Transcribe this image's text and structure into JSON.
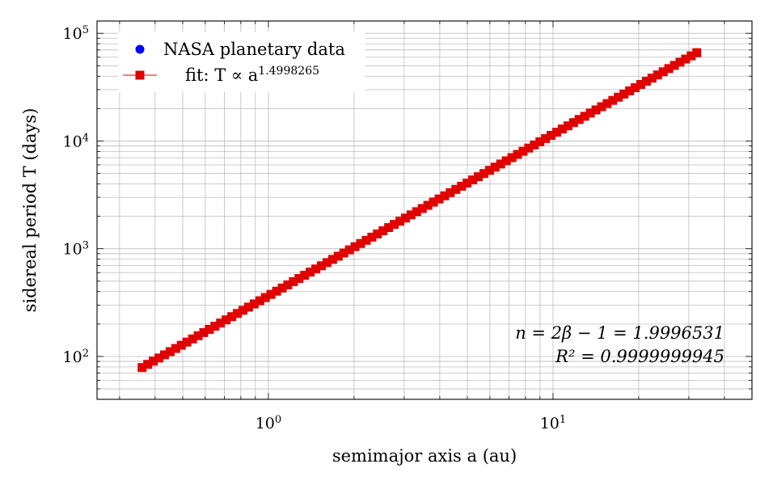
{
  "chart_data": {
    "type": "scatter",
    "title": "",
    "xlabel": "semimajor axis a (au)",
    "ylabel": "sidereal period T (days)",
    "xscale": "log",
    "yscale": "log",
    "xlim": [
      0.25,
      50
    ],
    "ylim": [
      40,
      130000
    ],
    "grid": true,
    "legend_position": "top-left",
    "x_ticks": [
      {
        "value": 1,
        "base": "10",
        "exp": "0"
      },
      {
        "value": 10,
        "base": "10",
        "exp": "1"
      }
    ],
    "y_ticks": [
      {
        "value": 100,
        "base": "10",
        "exp": "2"
      },
      {
        "value": 1000,
        "base": "10",
        "exp": "3"
      },
      {
        "value": 10000,
        "base": "10",
        "exp": "4"
      },
      {
        "value": 100000,
        "base": "10",
        "exp": "5"
      }
    ],
    "series": [
      {
        "name": "NASA planetary data",
        "marker": "circle",
        "color": "#0000ff",
        "points": []
      },
      {
        "name": "fit: T ∝ a^1.4998265",
        "legend_prefix": "fit: T ∝ a",
        "legend_exponent": "1.4998265",
        "marker": "square",
        "color": "#e00000",
        "function": "365.25 * a^1.4998265",
        "coefficient": 365.25,
        "exponent": 1.4998265,
        "domain": [
          0.36,
          32
        ],
        "samples": 100
      }
    ],
    "annotations": [
      "n = 2β − 1 = 1.9996531",
      "R² = 0.9999999945"
    ]
  }
}
